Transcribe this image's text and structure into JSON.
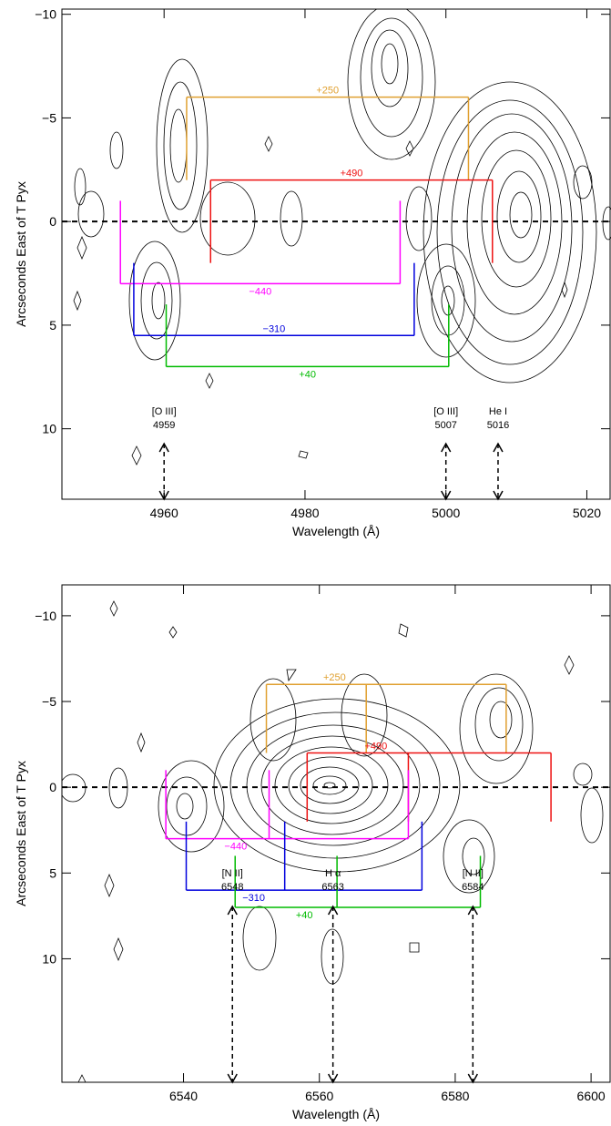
{
  "chart_data": [
    {
      "type": "contour",
      "xlabel": "Wavelength (Å)",
      "ylabel": "Arcseconds East of T Pyx",
      "xlim": [
        4945.5,
        5023.3
      ],
      "ylim": [
        -10.25,
        13.4
      ],
      "xticks": [
        4960,
        4980,
        5000,
        5020
      ],
      "yticks": [
        {
          "value": -10,
          "label": "−10"
        },
        {
          "value": -5,
          "label": "−5"
        },
        0,
        5,
        10
      ],
      "zero_line": true,
      "brackets": [
        {
          "label": "+250",
          "color": "#e0a030",
          "y": -6,
          "y_end": -2,
          "x": [
            4963.2,
            5003.2
          ],
          "label_position": "above"
        },
        {
          "label": "+490",
          "color": "#ee1111",
          "y": -2,
          "y_end": 2,
          "x": [
            4966.6,
            5006.6
          ],
          "label_position": "above"
        },
        {
          "label": "−440",
          "color": "#ff00ff",
          "y": 3,
          "y_end": -1,
          "x": [
            4953.8,
            4993.5
          ],
          "label_position": "below"
        },
        {
          "label": "−310",
          "color": "#0000dd",
          "y": 5.5,
          "y_end": 2,
          "x": [
            4955.7,
            4995.5
          ],
          "label_position": "above"
        },
        {
          "label": "+40",
          "color": "#00bb00",
          "y": 7,
          "y_end": 4,
          "x": [
            4960.3,
            5000.4
          ],
          "label_position": "below"
        }
      ],
      "lines": [
        {
          "name": "[O III]",
          "wavelength": 4959,
          "x": 4960
        },
        {
          "name": "[O III]",
          "wavelength": 5007,
          "x": 5000
        },
        {
          "name": "He I",
          "wavelength": 5016,
          "x": 5007.4
        }
      ]
    },
    {
      "type": "contour",
      "xlabel": "Wavelength (Å)",
      "ylabel": "Arcseconds East of T Pyx",
      "xlim": [
        6522.1,
        6602.8
      ],
      "ylim": [
        -11.8,
        17.2
      ],
      "xticks": [
        6540,
        6560,
        6580,
        6600
      ],
      "yticks": [
        {
          "value": -10,
          "label": "−10"
        },
        {
          "value": -5,
          "label": "−5"
        },
        0,
        5,
        10
      ],
      "zero_line": true,
      "brackets": [
        {
          "label": "+250",
          "color": "#e0a030",
          "y": -6,
          "y_end": -2,
          "x": [
            6552.2,
            6566.9,
            6587.5
          ],
          "label_position": "above"
        },
        {
          "label": "+490",
          "color": "#ee1111",
          "y": -2,
          "y_end": 2,
          "x": [
            6558.2,
            6573.1,
            6594.1
          ],
          "label_position": "above"
        },
        {
          "label": "−440",
          "color": "#ff00ff",
          "y": 3,
          "y_end": -1,
          "x": [
            6537.4,
            6552.6,
            6573.1
          ],
          "label_position": "below"
        },
        {
          "label": "−310",
          "color": "#0000dd",
          "y": 6,
          "y_end": 2,
          "x": [
            6540.4,
            6554.9,
            6575.1
          ],
          "label_position": "below"
        },
        {
          "label": "+40",
          "color": "#00bb00",
          "y": 7,
          "y_end": 4,
          "x": [
            6547.6,
            6562.6,
            6583.7
          ],
          "label_position": "below"
        }
      ],
      "lines": [
        {
          "name": "[N II]",
          "wavelength": 6548,
          "x": 6547.2
        },
        {
          "name": "H α",
          "wavelength": 6563,
          "x": 6562
        },
        {
          "name": "[N II]",
          "wavelength": 6584,
          "x": 6582.6
        }
      ]
    }
  ]
}
